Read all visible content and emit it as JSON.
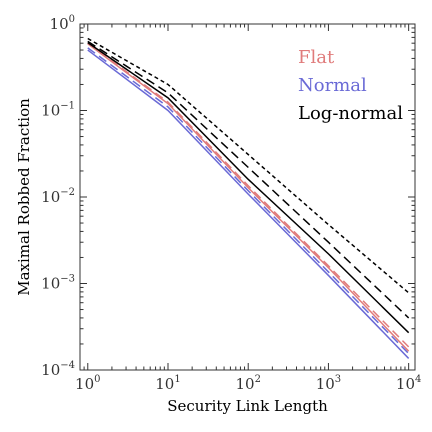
{
  "chart_data": {
    "type": "line",
    "title": "",
    "xlabel": "Security Link Length",
    "ylabel": "Maximal Robbed Fraction",
    "xscale": "log",
    "yscale": "log",
    "xlim": [
      0.8,
      12000
    ],
    "ylim": [
      0.0001,
      1
    ],
    "xticks": [
      {
        "value": 1,
        "base": "10",
        "exp": "0"
      },
      {
        "value": 10,
        "base": "10",
        "exp": "1"
      },
      {
        "value": 100,
        "base": "10",
        "exp": "2"
      },
      {
        "value": 1000,
        "base": "10",
        "exp": "3"
      },
      {
        "value": 10000,
        "base": "10",
        "exp": "4"
      }
    ],
    "yticks": [
      {
        "value": 0.0001,
        "base": "10",
        "exp": "−4"
      },
      {
        "value": 0.001,
        "base": "10",
        "exp": "−3"
      },
      {
        "value": 0.01,
        "base": "10",
        "exp": "−2"
      },
      {
        "value": 0.1,
        "base": "10",
        "exp": "−1"
      },
      {
        "value": 1,
        "base": "10",
        "exp": "0"
      }
    ],
    "grid": false,
    "legend": {
      "placement": "top-right",
      "entries": [
        {
          "label": "Flat",
          "color": "#e07b7b"
        },
        {
          "label": "Normal",
          "color": "#6a6ad6"
        },
        {
          "label": "Log-normal",
          "color": "#000000"
        }
      ]
    },
    "series": [
      {
        "group": "Flat",
        "color": "#e07b7b",
        "dash": "solid",
        "x": [
          1,
          10,
          100,
          1000,
          10000
        ],
        "y": [
          0.59,
          0.12,
          0.0128,
          0.00152,
          0.000165
        ]
      },
      {
        "group": "Flat",
        "color": "#e07b7b",
        "dash": "dashed",
        "x": [
          1,
          10,
          100,
          1000,
          10000
        ],
        "y": [
          0.6,
          0.125,
          0.0135,
          0.0016,
          0.000185
        ]
      },
      {
        "group": "Normal",
        "color": "#6a6ad6",
        "dash": "solid",
        "x": [
          1,
          10,
          100,
          1000,
          10000
        ],
        "y": [
          0.5,
          0.1,
          0.0108,
          0.00124,
          0.000136
        ]
      },
      {
        "group": "Normal",
        "color": "#6a6ad6",
        "dash": "dashed",
        "x": [
          1,
          10,
          100,
          1000,
          10000
        ],
        "y": [
          0.53,
          0.11,
          0.0118,
          0.00136,
          0.000155
        ]
      },
      {
        "group": "Log-normal",
        "color": "#000000",
        "dash": "solid",
        "x": [
          1,
          10,
          100,
          1000,
          10000
        ],
        "y": [
          0.61,
          0.14,
          0.016,
          0.0022,
          0.00027
        ]
      },
      {
        "group": "Log-normal",
        "color": "#000000",
        "dash": "dashed",
        "x": [
          1,
          10,
          100,
          1000,
          10000
        ],
        "y": [
          0.63,
          0.16,
          0.022,
          0.003,
          0.0004
        ]
      },
      {
        "group": "Log-normal",
        "color": "#000000",
        "dash": "dotted",
        "x": [
          1,
          10,
          100,
          1000,
          10000
        ],
        "y": [
          0.68,
          0.2,
          0.031,
          0.0048,
          0.00078
        ]
      }
    ]
  }
}
